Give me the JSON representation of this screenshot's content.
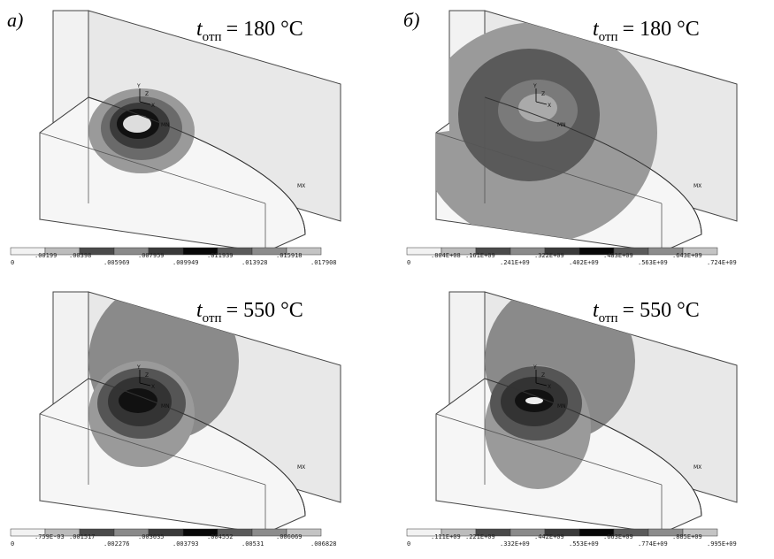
{
  "plots": [
    {
      "panel_label": "а)",
      "temp_symbol": "t",
      "temp_subscript": "отп",
      "temp_value": "= 180 °C",
      "min_label": "MN",
      "max_label": "MX",
      "triad": [
        "Y",
        "Z",
        "X"
      ],
      "legend": [
        "0",
        ".00199",
        ".00398",
        ".005969",
        ".007959",
        ".009949",
        ".011939",
        ".013928",
        ".015918",
        ".017908"
      ]
    },
    {
      "panel_label": "б)",
      "temp_symbol": "t",
      "temp_subscript": "отп",
      "temp_value": "= 180 °C",
      "min_label": "MN",
      "max_label": "MX",
      "triad": [
        "Y",
        "Z",
        "X"
      ],
      "legend": [
        "0",
        ".804E+08",
        ".161E+09",
        ".241E+09",
        ".322E+09",
        ".402E+09",
        ".483E+09",
        ".563E+09",
        ".643E+09",
        ".724E+09"
      ]
    },
    {
      "temp_symbol": "t",
      "temp_subscript": "отп",
      "temp_value": "= 550 °C",
      "min_label": "MN",
      "max_label": "MX",
      "triad": [
        "Y",
        "Z",
        "X"
      ],
      "legend": [
        "0",
        ".759E-03",
        ".001517",
        ".002276",
        ".003035",
        ".003793",
        ".004552",
        ".00531",
        ".006069",
        ".006828"
      ]
    },
    {
      "temp_symbol": "t",
      "temp_subscript": "отп",
      "temp_value": "= 550 °C",
      "min_label": "MN",
      "max_label": "MX",
      "triad": [
        "Y",
        "Z",
        "X"
      ],
      "legend": [
        "0",
        ".111E+09",
        ".221E+09",
        ".332E+09",
        ".442E+09",
        ".553E+09",
        ".663E+09",
        ".774E+09",
        ".885E+09",
        ".995E+09"
      ]
    }
  ]
}
